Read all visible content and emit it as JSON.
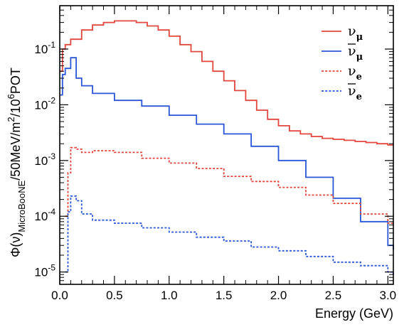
{
  "chart_data": {
    "type": "line",
    "title": "",
    "xlabel": "Energy (GeV)",
    "ylabel": "Φ(ν)_MicroBooNE/50MeV/m²/10⁶POT",
    "ylabel_parts": {
      "main": "Φ(ν)",
      "sub": "MicroBooNE",
      "rest1": "/50MeV/m",
      "sup1": "2",
      "rest2": "/10",
      "sup2": "6",
      "rest3": "POT"
    },
    "x_ticks": [
      "0.0",
      "0.5",
      "1.0",
      "1.5",
      "2.0",
      "2.5",
      "3.0"
    ],
    "y_ticks": [
      "10⁻⁵",
      "10⁻⁴",
      "10⁻³",
      "10⁻²",
      "10⁻¹"
    ],
    "y_ticks_parts": [
      {
        "base": "10",
        "exp": "-5"
      },
      {
        "base": "10",
        "exp": "-4"
      },
      {
        "base": "10",
        "exp": "-3"
      },
      {
        "base": "10",
        "exp": "-2"
      },
      {
        "base": "10",
        "exp": "-1"
      }
    ],
    "xlim": [
      0,
      3.05
    ],
    "ylim": [
      6e-06,
      0.6
    ],
    "yscale": "log",
    "grid": false,
    "legend_position": "top-right",
    "series": [
      {
        "name": "ν_μ",
        "legend": {
          "base": "ν",
          "sub": "μ",
          "bar": false
        },
        "color": "#e2463c",
        "dash": "solid",
        "x": [
          0,
          0.025,
          0.05,
          0.1,
          0.2,
          0.3,
          0.4,
          0.5,
          0.6,
          0.7,
          0.8,
          0.9,
          1.0,
          1.1,
          1.2,
          1.3,
          1.4,
          1.5,
          1.6,
          1.7,
          1.8,
          1.9,
          2.0,
          2.1,
          2.2,
          2.3,
          2.4,
          2.5,
          2.6,
          2.7,
          2.8,
          2.9,
          3.0,
          3.05
        ],
        "y": [
          0.04,
          0.1,
          0.12,
          0.15,
          0.22,
          0.27,
          0.3,
          0.32,
          0.32,
          0.3,
          0.26,
          0.22,
          0.17,
          0.12,
          0.09,
          0.06,
          0.04,
          0.027,
          0.018,
          0.012,
          0.008,
          0.0055,
          0.0042,
          0.0034,
          0.003,
          0.0027,
          0.0025,
          0.0024,
          0.0023,
          0.0022,
          0.0021,
          0.002,
          0.0019,
          0.0019
        ]
      },
      {
        "name": "ν̄_μ",
        "legend": {
          "base": "ν",
          "sub": "μ",
          "bar": true
        },
        "color": "#2a56d9",
        "dash": "solid",
        "x": [
          0,
          0.025,
          0.05,
          0.1,
          0.15,
          0.2,
          0.3,
          0.5,
          0.75,
          1.0,
          1.25,
          1.5,
          1.75,
          2.0,
          2.25,
          2.5,
          2.75,
          3.0,
          3.05
        ],
        "y": [
          0.015,
          0.035,
          0.045,
          0.07,
          0.03,
          0.022,
          0.016,
          0.012,
          0.0095,
          0.0065,
          0.0045,
          0.003,
          0.0018,
          0.001,
          0.0005,
          0.00021,
          8e-05,
          3e-05,
          2.5e-05
        ]
      },
      {
        "name": "ν_e",
        "legend": {
          "base": "ν",
          "sub": "e",
          "bar": false
        },
        "color": "#e2463c",
        "dash": "dashed",
        "x": [
          0.05,
          0.075,
          0.1,
          0.15,
          0.2,
          0.3,
          0.5,
          0.75,
          1.0,
          1.25,
          1.5,
          1.75,
          2.0,
          2.25,
          2.5,
          2.75,
          3.0,
          3.05
        ],
        "y": [
          0.0001,
          0.0006,
          0.0017,
          0.0016,
          0.0014,
          0.0015,
          0.0014,
          0.0011,
          0.0009,
          0.00072,
          0.00052,
          0.00042,
          0.00033,
          0.00024,
          0.00017,
          0.00011,
          7.5e-05,
          7e-05
        ]
      },
      {
        "name": "ν̄_e",
        "legend": {
          "base": "ν",
          "sub": "e",
          "bar": true
        },
        "color": "#2a56d9",
        "dash": "dashed",
        "x": [
          0.05,
          0.075,
          0.1,
          0.15,
          0.2,
          0.3,
          0.5,
          0.75,
          1.0,
          1.25,
          1.5,
          1.75,
          2.0,
          2.25,
          2.5,
          2.75,
          3.0,
          3.05
        ],
        "y": [
          1e-05,
          0.00012,
          0.00023,
          0.00019,
          0.00011,
          8.5e-05,
          7.5e-05,
          6.2e-05,
          5.2e-05,
          4.2e-05,
          3.6e-05,
          2.8e-05,
          2.4e-05,
          1.9e-05,
          1.5e-05,
          1.3e-05,
          1e-05,
          9e-06
        ]
      }
    ]
  }
}
